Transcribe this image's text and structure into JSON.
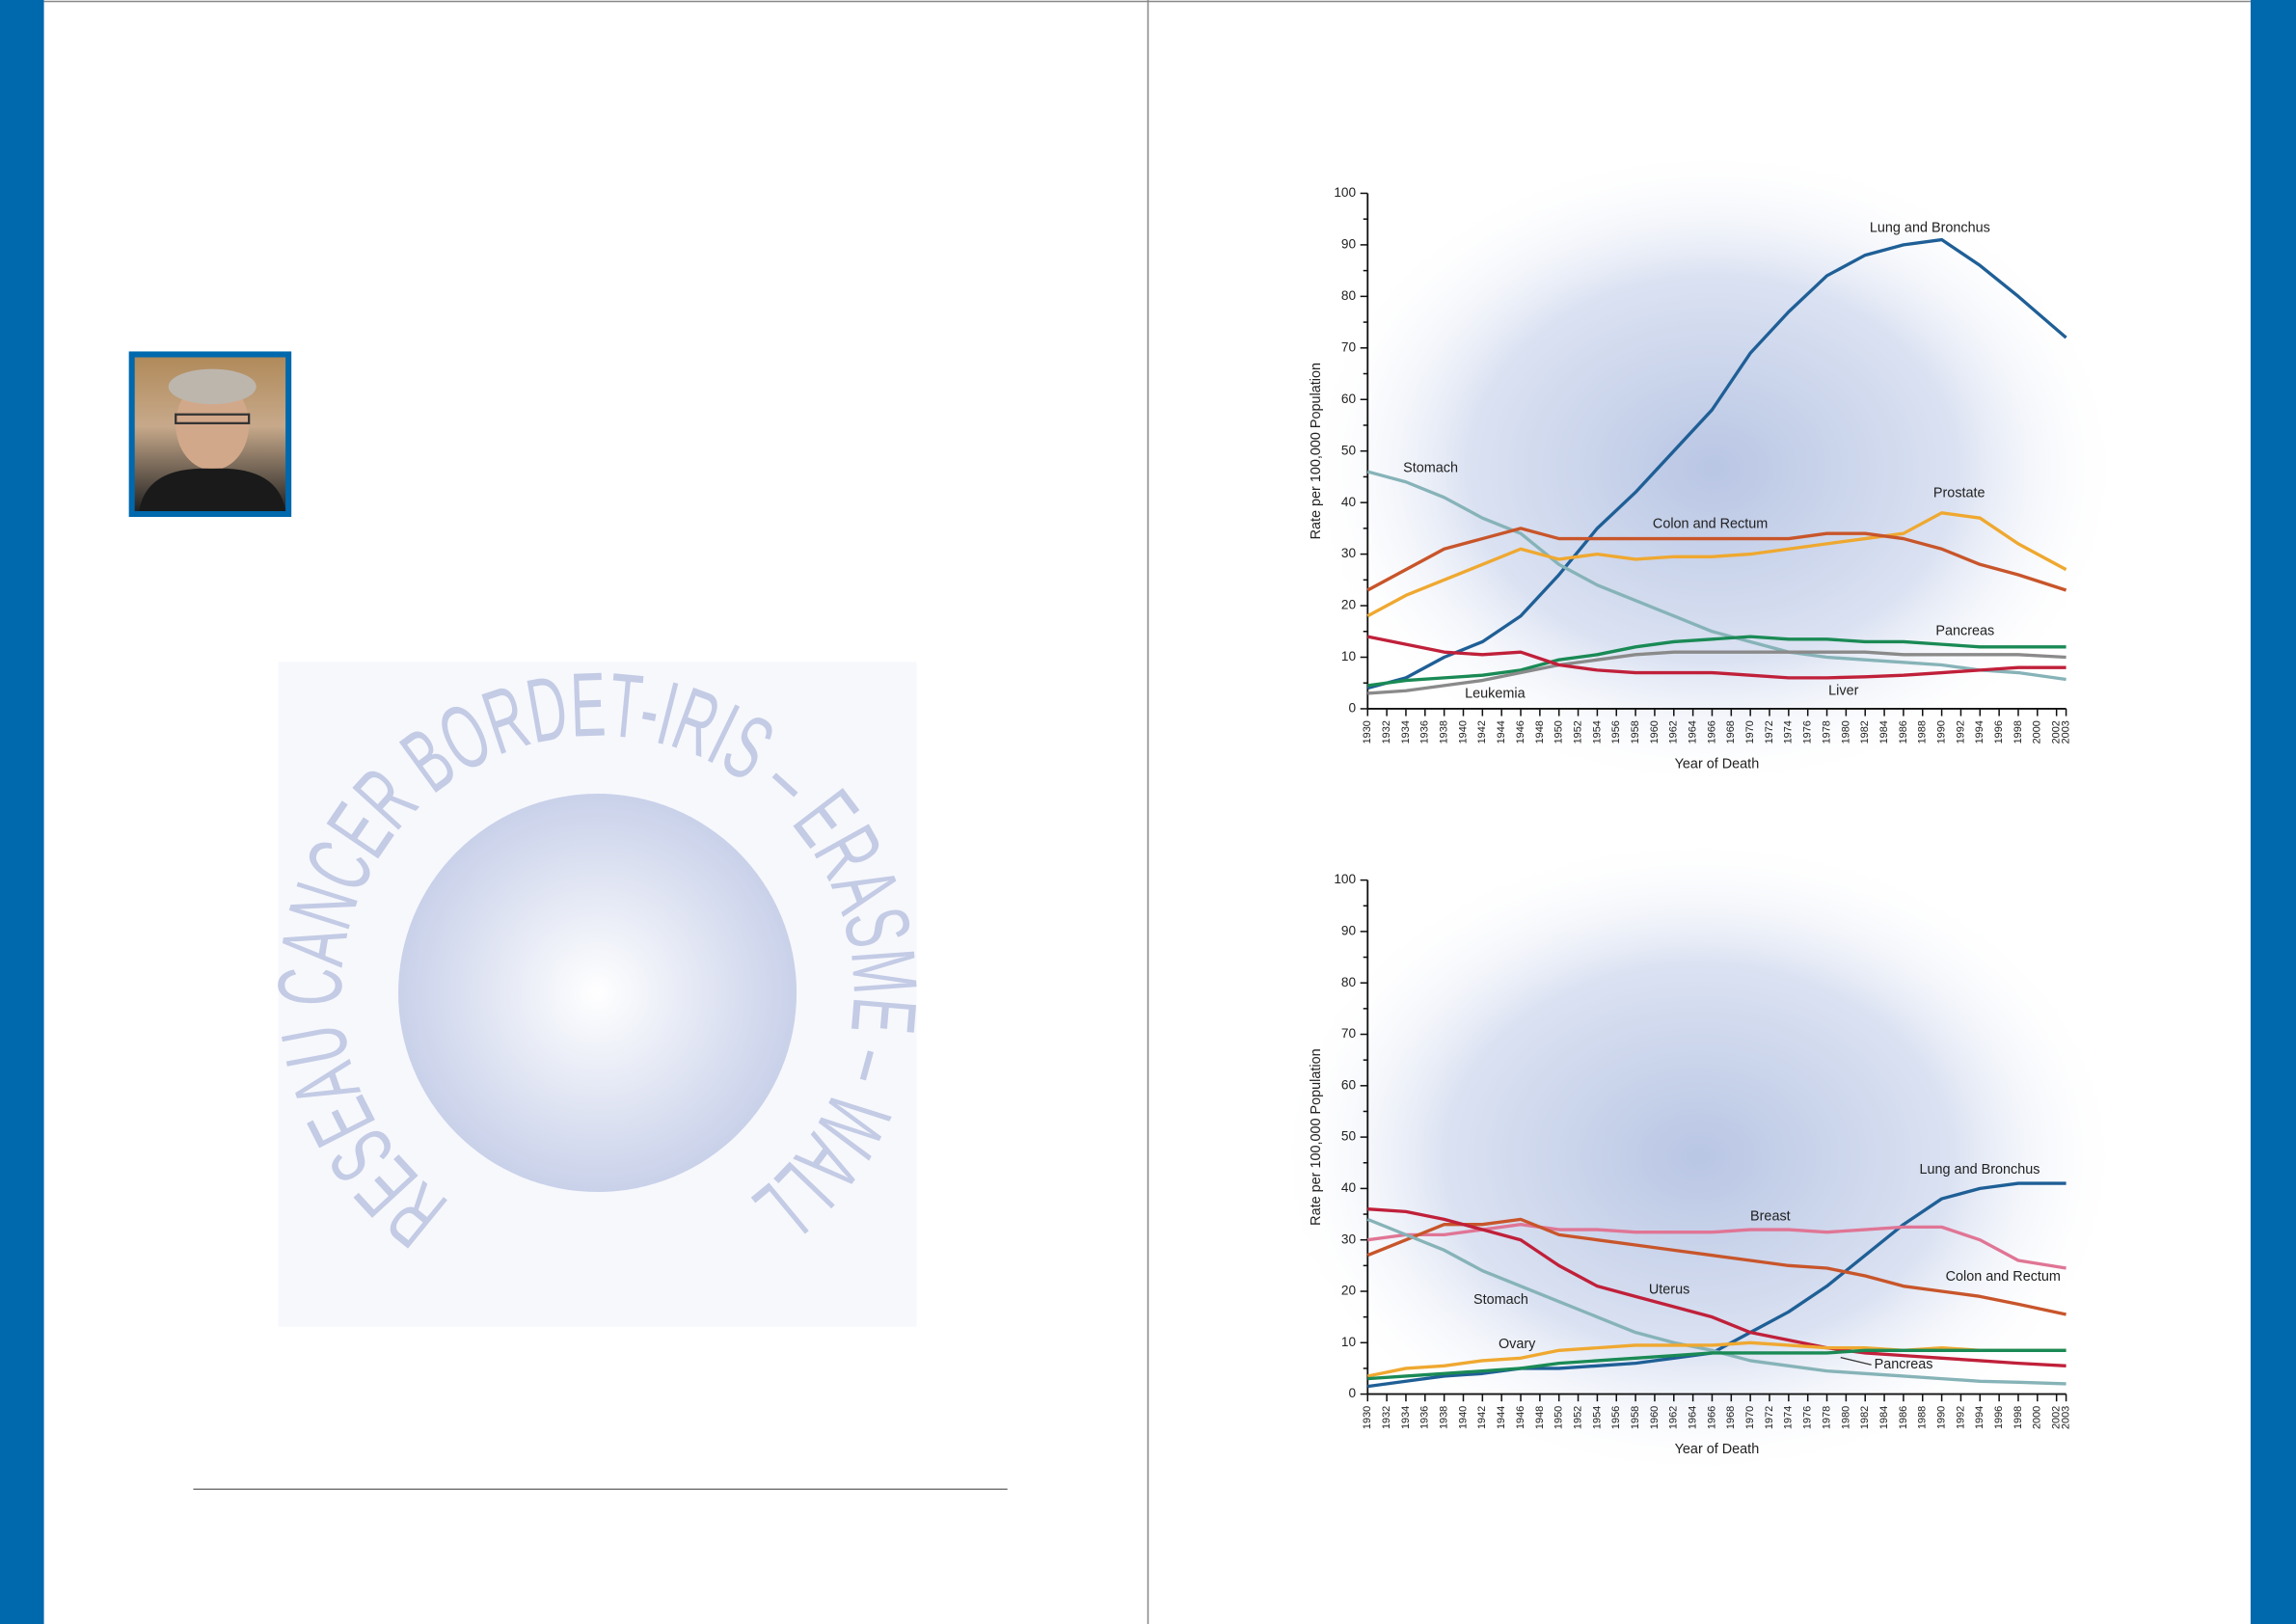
{
  "logo": {
    "text": "RESEAU CANCER BORDET-IRIS – ERASME – WALLONIE –"
  },
  "chart_data": [
    {
      "type": "line",
      "y_label": "Rate per 100,000 Population",
      "x_label": "Year of Death",
      "xlim": [
        1930,
        2003
      ],
      "ylim": [
        0,
        100
      ],
      "yticks": [
        0,
        10,
        20,
        30,
        40,
        50,
        60,
        70,
        80,
        90,
        100
      ],
      "xticks": [
        1930,
        1932,
        1934,
        1936,
        1938,
        1940,
        1942,
        1944,
        1946,
        1948,
        1950,
        1952,
        1954,
        1956,
        1958,
        1960,
        1962,
        1964,
        1966,
        1968,
        1970,
        1972,
        1974,
        1976,
        1978,
        1980,
        1982,
        1984,
        1986,
        1988,
        1990,
        1992,
        1994,
        1996,
        1998,
        2000,
        2002,
        2003
      ],
      "x": [
        1930,
        1934,
        1938,
        1942,
        1946,
        1950,
        1954,
        1958,
        1962,
        1966,
        1970,
        1974,
        1978,
        1982,
        1986,
        1990,
        1994,
        1998,
        2003
      ],
      "series": [
        {
          "name": "Lung and Bronchus",
          "color": "#1f5f96",
          "values": [
            4,
            6,
            10,
            13,
            18,
            26,
            35,
            42,
            50,
            58,
            69,
            77,
            84,
            88,
            90,
            91,
            86,
            80,
            72
          ]
        },
        {
          "name": "Stomach",
          "color": "#86b3b8",
          "values": [
            46,
            44,
            41,
            37,
            34,
            28,
            24,
            21,
            18,
            15,
            13,
            11,
            10,
            9.5,
            9,
            8.5,
            7.5,
            7,
            5.7
          ]
        },
        {
          "name": "Prostate",
          "color": "#efa830",
          "values": [
            18,
            22,
            25,
            28,
            31,
            29,
            30,
            29,
            29.5,
            29.5,
            30,
            31,
            32,
            33,
            34,
            38,
            37,
            32,
            27
          ]
        },
        {
          "name": "Colon and Rectum",
          "color": "#c8552a",
          "values": [
            23,
            27,
            31,
            33,
            35,
            33,
            33,
            33,
            33,
            33,
            33,
            33,
            34,
            34,
            33,
            31,
            28,
            26,
            23
          ]
        },
        {
          "name": "Pancreas",
          "color": "#1a8a55",
          "values": [
            4.5,
            5.5,
            6,
            6.5,
            7.5,
            9.5,
            10.5,
            12,
            13,
            13.5,
            14,
            13.5,
            13.5,
            13,
            13,
            12.5,
            12,
            12,
            12
          ]
        },
        {
          "name": "Leukemia",
          "color": "#8a8a8a",
          "values": [
            3,
            3.5,
            4.5,
            5.5,
            7,
            8.5,
            9.5,
            10.5,
            11,
            11,
            11,
            11,
            11,
            11,
            10.5,
            10.5,
            10.5,
            10.5,
            10
          ]
        },
        {
          "name": "Liver",
          "color": "#c0203a",
          "values": [
            14,
            12.5,
            11,
            10.5,
            11,
            8.5,
            7.5,
            7,
            7,
            7,
            6.5,
            6,
            6,
            6.2,
            6.5,
            7,
            7.5,
            8,
            8
          ]
        }
      ]
    },
    {
      "type": "line",
      "y_label": "Rate per 100,000 Population",
      "x_label": "Year of Death",
      "xlim": [
        1930,
        2003
      ],
      "ylim": [
        0,
        100
      ],
      "yticks": [
        0,
        10,
        20,
        30,
        40,
        50,
        60,
        70,
        80,
        90,
        100
      ],
      "xticks": [
        1930,
        1932,
        1934,
        1936,
        1938,
        1940,
        1942,
        1944,
        1946,
        1948,
        1950,
        1952,
        1954,
        1956,
        1958,
        1960,
        1962,
        1964,
        1966,
        1968,
        1970,
        1972,
        1974,
        1976,
        1978,
        1980,
        1982,
        1984,
        1986,
        1988,
        1990,
        1992,
        1994,
        1996,
        1998,
        2000,
        2002,
        2003
      ],
      "x": [
        1930,
        1934,
        1938,
        1942,
        1946,
        1950,
        1954,
        1958,
        1962,
        1966,
        1970,
        1974,
        1978,
        1982,
        1986,
        1990,
        1994,
        1998,
        2003
      ],
      "series": [
        {
          "name": "Lung and Bronchus",
          "color": "#1f5f96",
          "values": [
            1.5,
            2.5,
            3.5,
            4,
            5,
            5,
            5.5,
            6,
            7,
            8,
            12,
            16,
            21,
            27,
            33,
            38,
            40,
            41,
            41
          ]
        },
        {
          "name": "Breast",
          "color": "#e07595",
          "values": [
            30,
            31,
            31,
            32,
            33,
            32,
            32,
            31.5,
            31.5,
            31.5,
            32,
            32,
            31.5,
            32,
            32.5,
            32.5,
            30,
            26,
            24.5
          ]
        },
        {
          "name": "Colon and Rectum",
          "color": "#c8552a",
          "values": [
            27,
            30,
            33,
            33,
            34,
            31,
            30,
            29,
            28,
            27,
            26,
            25,
            24.5,
            23,
            21,
            20,
            19,
            17.5,
            15.5
          ]
        },
        {
          "name": "Uterus",
          "color": "#c0203a",
          "values": [
            36,
            35.5,
            34,
            32,
            30,
            25,
            21,
            19,
            17,
            15,
            12,
            10.5,
            9,
            8,
            7.5,
            7,
            6.5,
            6,
            5.5
          ]
        },
        {
          "name": "Stomach",
          "color": "#86b3b8",
          "values": [
            34,
            31,
            28,
            24,
            21,
            18,
            15,
            12,
            10,
            8.5,
            6.5,
            5.5,
            4.5,
            4,
            3.5,
            3,
            2.5,
            2.3,
            2
          ]
        },
        {
          "name": "Ovary",
          "color": "#efa830",
          "values": [
            3.5,
            5,
            5.5,
            6.5,
            7,
            8.5,
            9,
            9.5,
            9.5,
            9.5,
            10,
            9.5,
            9,
            9,
            8.5,
            9,
            8.5,
            8.5,
            8.5
          ]
        },
        {
          "name": "Pancreas",
          "color": "#1a8a55",
          "values": [
            3,
            3.5,
            4,
            4.5,
            5,
            6,
            6.5,
            7,
            7.5,
            8,
            8,
            8,
            8,
            8.5,
            8.5,
            8.5,
            8.5,
            8.5,
            8.5
          ]
        }
      ]
    }
  ]
}
